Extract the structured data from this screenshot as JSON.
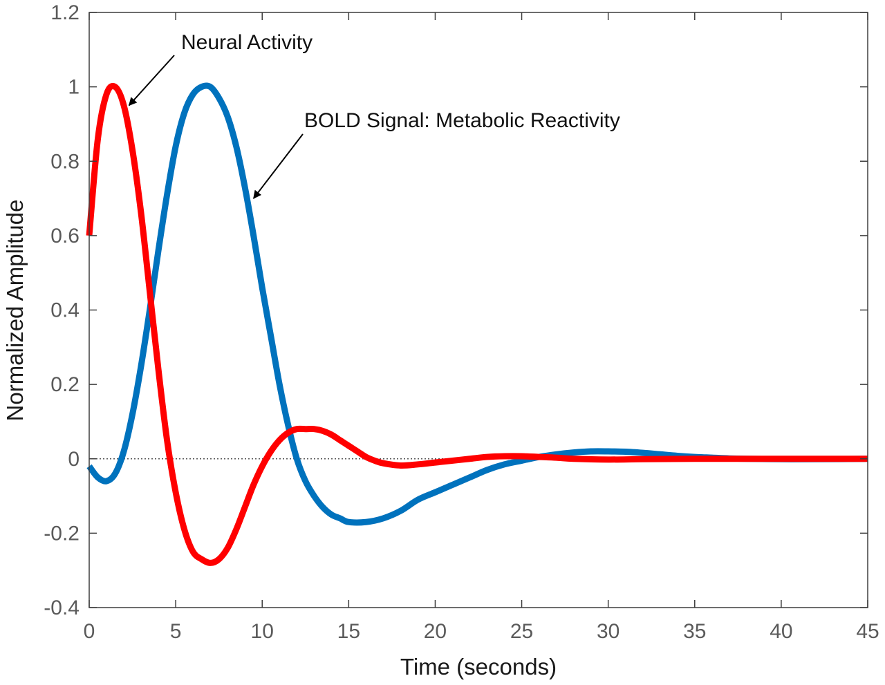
{
  "chart_data": {
    "type": "line",
    "title": "",
    "xlabel": "Time (seconds)",
    "ylabel": "Normalized Amplitude",
    "xlim": [
      0,
      45
    ],
    "ylim": [
      -0.4,
      1.2
    ],
    "xticks": [
      0,
      5,
      10,
      15,
      20,
      25,
      30,
      35,
      40,
      45
    ],
    "yticks": [
      -0.4,
      -0.2,
      0,
      0.2,
      0.4,
      0.6,
      0.8,
      1,
      1.2
    ],
    "xtick_labels": [
      "0",
      "5",
      "10",
      "15",
      "20",
      "25",
      "30",
      "35",
      "40",
      "45"
    ],
    "ytick_labels": [
      "-0.4",
      "-0.2",
      "0",
      "0.2",
      "0.4",
      "0.6",
      "0.8",
      "1",
      "1.2"
    ],
    "grid": false,
    "zero_line": "dotted",
    "series": [
      {
        "color": "#0072BD",
        "x": [
          0,
          0.5,
          1,
          1.5,
          2,
          2.5,
          3,
          3.5,
          4,
          4.5,
          5,
          5.5,
          6,
          6.5,
          7,
          7.5,
          8,
          8.5,
          9,
          9.5,
          10,
          10.5,
          11,
          11.5,
          12,
          12.5,
          13,
          13.5,
          14,
          14.5,
          15,
          16,
          17,
          18,
          19,
          20,
          21,
          22,
          23,
          24,
          25,
          26,
          27,
          28,
          29,
          30,
          31,
          32,
          33,
          34,
          35,
          36,
          37,
          38,
          40,
          42,
          45
        ],
        "y": [
          -0.02,
          -0.05,
          -0.06,
          -0.04,
          0.02,
          0.12,
          0.25,
          0.4,
          0.56,
          0.71,
          0.84,
          0.93,
          0.98,
          1.0,
          1.0,
          0.97,
          0.92,
          0.84,
          0.73,
          0.6,
          0.46,
          0.33,
          0.2,
          0.09,
          0.0,
          -0.06,
          -0.1,
          -0.13,
          -0.15,
          -0.16,
          -0.17,
          -0.17,
          -0.16,
          -0.14,
          -0.11,
          -0.09,
          -0.07,
          -0.05,
          -0.03,
          -0.015,
          -0.005,
          0.005,
          0.012,
          0.017,
          0.02,
          0.02,
          0.019,
          0.016,
          0.012,
          0.008,
          0.005,
          0.003,
          0.001,
          0.0,
          -0.001,
          -0.001,
          0.0
        ]
      },
      {
        "color": "#FF0000",
        "x": [
          0,
          0.5,
          1,
          1.5,
          2,
          2.5,
          3,
          3.5,
          4,
          4.5,
          5,
          5.5,
          6,
          6.5,
          7,
          7.5,
          8,
          8.5,
          9,
          9.5,
          10,
          10.5,
          11,
          11.5,
          12,
          12.5,
          13,
          13.5,
          14,
          14.5,
          15,
          15.5,
          16,
          16.5,
          17,
          18,
          19,
          20,
          21,
          22,
          23,
          24,
          25,
          26,
          27,
          28,
          30,
          32,
          35,
          40,
          45
        ],
        "y": [
          0.6,
          0.86,
          0.98,
          1.0,
          0.95,
          0.83,
          0.66,
          0.45,
          0.24,
          0.05,
          -0.09,
          -0.19,
          -0.25,
          -0.27,
          -0.28,
          -0.27,
          -0.24,
          -0.19,
          -0.13,
          -0.07,
          -0.02,
          0.02,
          0.05,
          0.07,
          0.08,
          0.08,
          0.08,
          0.075,
          0.065,
          0.05,
          0.035,
          0.02,
          0.005,
          -0.005,
          -0.012,
          -0.018,
          -0.015,
          -0.01,
          -0.005,
          0.0,
          0.005,
          0.007,
          0.007,
          0.005,
          0.003,
          0.0,
          -0.002,
          -0.001,
          0.0,
          0.0,
          0.0
        ]
      }
    ],
    "annotations": [
      {
        "text": "Neural Activity",
        "points_to": [
          2.3,
          0.95
        ]
      },
      {
        "text": "BOLD Signal: Metabolic Reactivity",
        "points_to": [
          9.5,
          0.7
        ]
      }
    ]
  }
}
